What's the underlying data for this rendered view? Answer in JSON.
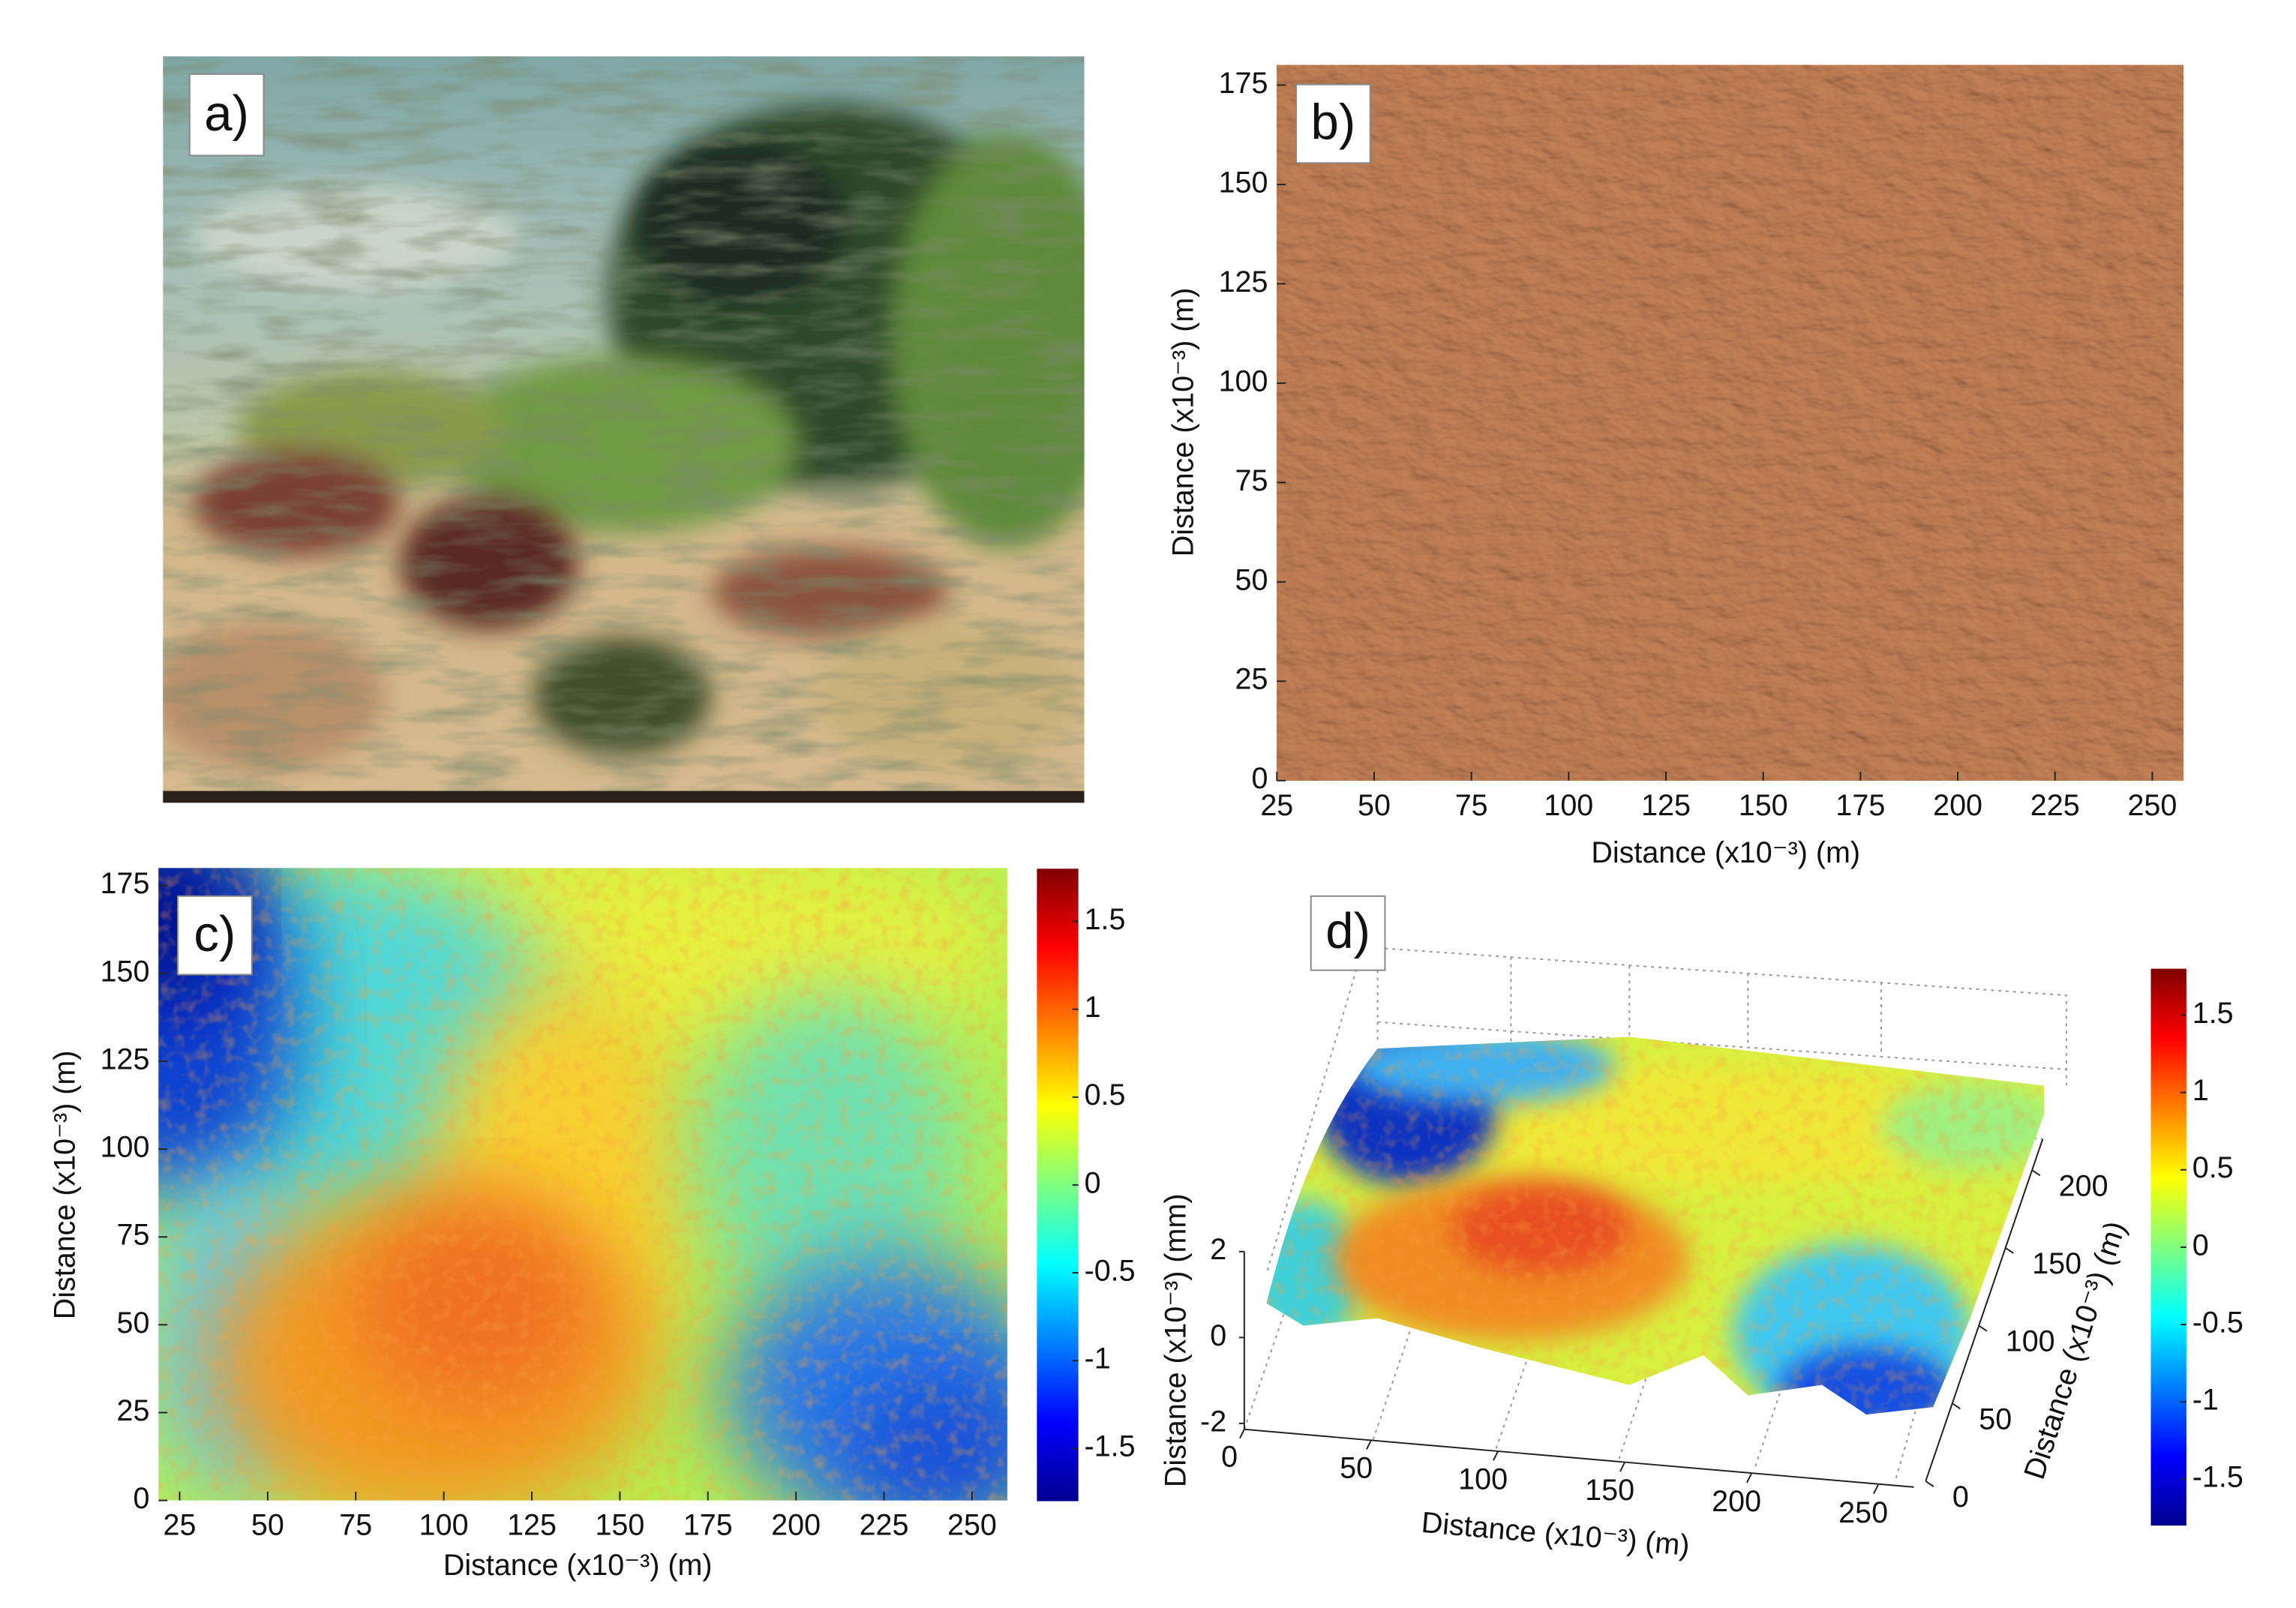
{
  "panels": [
    {
      "label": "a)"
    },
    {
      "label": "b)",
      "xlabel": "Distance (x10⁻³) (m)",
      "ylabel": "Distance (x10⁻³) (m)",
      "xlim": [
        25,
        258
      ],
      "ylim": [
        0,
        180
      ],
      "xticks": [
        25,
        50,
        75,
        100,
        125,
        150,
        175,
        200,
        225,
        250
      ],
      "yticks": [
        0,
        25,
        50,
        75,
        100,
        125,
        150,
        175
      ]
    },
    {
      "label": "c)",
      "xlabel": "Distance (x10⁻³) (m)",
      "ylabel": "Distance (x10⁻³) (m)",
      "xlim": [
        19,
        260
      ],
      "ylim": [
        0,
        180
      ],
      "xticks": [
        25,
        50,
        75,
        100,
        125,
        150,
        175,
        200,
        225,
        250
      ],
      "yticks": [
        0,
        25,
        50,
        75,
        100,
        125,
        150,
        175
      ],
      "clim": [
        -1.8,
        1.8
      ],
      "cticks": [
        -1.5,
        -1,
        -0.5,
        0,
        0.5,
        1,
        1.5
      ]
    },
    {
      "label": "d)",
      "xlabel": "Distance (x10⁻³) (m)",
      "ylabel": "Distance (x10⁻³) (m)",
      "zlabel": "Distance (x10⁻³) (mm)",
      "xlim": [
        0,
        260
      ],
      "ylim": [
        0,
        220
      ],
      "zlim": [
        -2,
        2
      ],
      "xticks": [
        0,
        50,
        100,
        150,
        200,
        250
      ],
      "yticks": [
        0,
        50,
        100,
        150,
        200
      ],
      "zticks": [
        -2,
        0,
        2
      ],
      "clim": [
        -1.8,
        1.8
      ],
      "cticks": [
        -1.5,
        -1,
        -0.5,
        0,
        0.5,
        1,
        1.5
      ]
    }
  ]
}
